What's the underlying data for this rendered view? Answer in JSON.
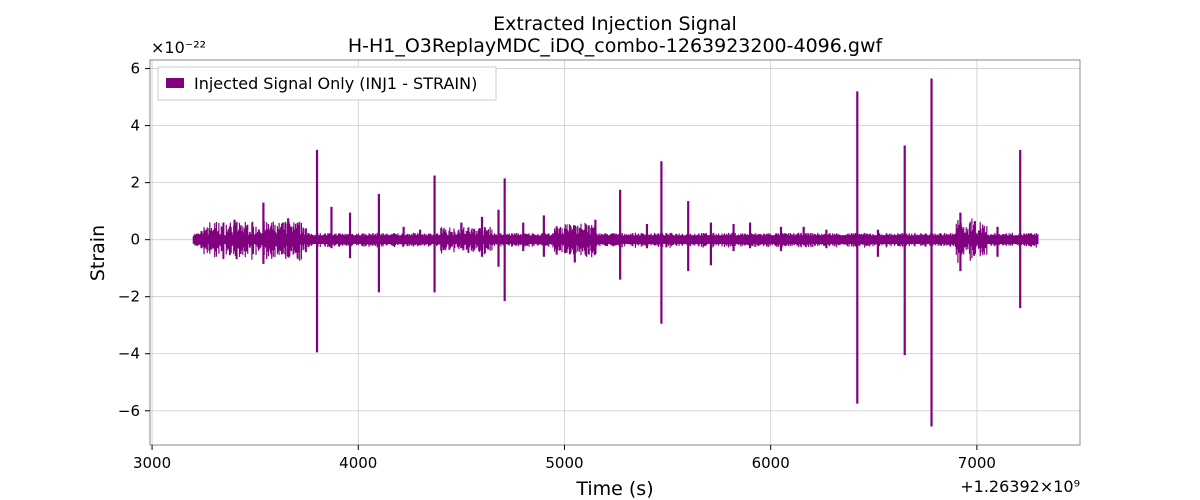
{
  "chart_data": {
    "type": "line",
    "title": "Extracted Injection Signal",
    "subtitle": "H-H1_O3ReplayMDC_iDQ_combo-1263923200-4096.gwf",
    "xlabel": "Time (s)",
    "ylabel": "Strain",
    "x_offset_label": "+1.26392×10⁹",
    "y_multiplier_label": "×10⁻²²",
    "xlim": [
      2990,
      7500
    ],
    "ylim": [
      -7.2,
      6.3
    ],
    "xticks": [
      3000,
      4000,
      5000,
      6000,
      7000
    ],
    "xtick_labels": [
      "3000",
      "4000",
      "5000",
      "6000",
      "7000"
    ],
    "yticks": [
      -6,
      -4,
      -2,
      0,
      2,
      4,
      6
    ],
    "ytick_labels": [
      "−6",
      "−4",
      "−2",
      "0",
      "2",
      "4",
      "6"
    ],
    "grid": true,
    "legend_position": "top-left",
    "series": [
      {
        "name": "Injected Signal Only (INJ1 - STRAIN)",
        "color": "#800080",
        "x_range": [
          3200,
          7296
        ],
        "baseline_amplitude": 0.15,
        "spikes": [
          {
            "x": 3240,
            "top": 0.3,
            "bottom": -0.3
          },
          {
            "x": 3300,
            "top": 0.35,
            "bottom": -0.3
          },
          {
            "x": 3400,
            "top": 0.7,
            "bottom": -0.4
          },
          {
            "x": 3460,
            "top": 0.5,
            "bottom": -0.4
          },
          {
            "x": 3540,
            "top": 1.3,
            "bottom": -0.85
          },
          {
            "x": 3660,
            "top": 0.75,
            "bottom": -0.6
          },
          {
            "x": 3800,
            "top": 3.15,
            "bottom": -3.95
          },
          {
            "x": 3870,
            "top": 1.15,
            "bottom": -0.3
          },
          {
            "x": 3960,
            "top": 0.95,
            "bottom": -0.65
          },
          {
            "x": 4100,
            "top": 1.6,
            "bottom": -1.85
          },
          {
            "x": 4220,
            "top": 0.45,
            "bottom": -0.2
          },
          {
            "x": 4300,
            "top": 0.35,
            "bottom": -0.2
          },
          {
            "x": 4370,
            "top": 2.25,
            "bottom": -1.85
          },
          {
            "x": 4500,
            "top": 0.6,
            "bottom": -0.3
          },
          {
            "x": 4600,
            "top": 0.8,
            "bottom": -0.6
          },
          {
            "x": 4680,
            "top": 1.05,
            "bottom": -0.95
          },
          {
            "x": 4710,
            "top": 2.15,
            "bottom": -2.15
          },
          {
            "x": 4800,
            "top": 0.6,
            "bottom": -0.4
          },
          {
            "x": 4900,
            "top": 0.85,
            "bottom": -0.6
          },
          {
            "x": 5050,
            "top": 0.5,
            "bottom": -0.8
          },
          {
            "x": 5150,
            "top": 0.7,
            "bottom": -0.5
          },
          {
            "x": 5270,
            "top": 1.75,
            "bottom": -1.4
          },
          {
            "x": 5400,
            "top": 0.55,
            "bottom": -0.3
          },
          {
            "x": 5470,
            "top": 2.75,
            "bottom": -2.95
          },
          {
            "x": 5600,
            "top": 1.35,
            "bottom": -1.1
          },
          {
            "x": 5710,
            "top": 0.6,
            "bottom": -0.9
          },
          {
            "x": 5820,
            "top": 0.55,
            "bottom": -0.4
          },
          {
            "x": 5900,
            "top": 0.6,
            "bottom": -0.3
          },
          {
            "x": 6050,
            "top": 0.45,
            "bottom": -0.4
          },
          {
            "x": 6160,
            "top": 0.45,
            "bottom": -0.2
          },
          {
            "x": 6270,
            "top": 0.35,
            "bottom": -0.3
          },
          {
            "x": 6420,
            "top": 5.2,
            "bottom": -5.75
          },
          {
            "x": 6520,
            "top": 0.35,
            "bottom": -0.6
          },
          {
            "x": 6650,
            "top": 3.3,
            "bottom": -4.05
          },
          {
            "x": 6780,
            "top": 5.65,
            "bottom": -6.55
          },
          {
            "x": 6920,
            "top": 0.95,
            "bottom": -1.1
          },
          {
            "x": 6990,
            "top": 0.65,
            "bottom": -0.5
          },
          {
            "x": 7100,
            "top": 0.45,
            "bottom": -0.6
          },
          {
            "x": 7210,
            "top": 3.15,
            "bottom": -2.4
          }
        ],
        "noisy_regions": [
          {
            "from": 3250,
            "to": 3750,
            "amplitude": 0.5
          },
          {
            "from": 4400,
            "to": 4650,
            "amplitude": 0.3
          },
          {
            "from": 4950,
            "to": 5150,
            "amplitude": 0.45
          },
          {
            "from": 6900,
            "to": 7050,
            "amplitude": 0.6
          }
        ]
      }
    ]
  }
}
